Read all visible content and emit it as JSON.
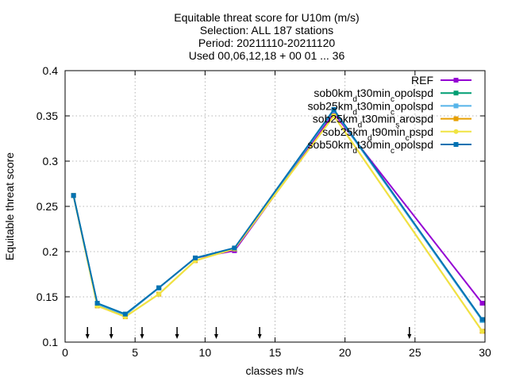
{
  "chart_data": {
    "type": "line",
    "title_lines": [
      "Equitable threat score  for U10m (m/s)",
      "Selection: ALL     187 stations",
      "Period: 20211110-20211120",
      "Used 00,06,12,18 + 00 01 ... 36"
    ],
    "xlabel": "classes m/s",
    "ylabel": "Equitable threat score",
    "xlim": [
      0,
      30
    ],
    "ylim": [
      0.1,
      0.4
    ],
    "xticks": [
      0,
      5,
      10,
      15,
      20,
      25,
      30
    ],
    "yticks": [
      0.1,
      0.15,
      0.2,
      0.25,
      0.3,
      0.35,
      0.4
    ],
    "ytick_labels": [
      "0.1",
      "0.15",
      "0.2",
      "0.25",
      "0.3",
      "0.35",
      "0.4"
    ],
    "grid": true,
    "legend_position": "top-right",
    "class_markers_x": [
      1.6,
      3.3,
      5.5,
      8.0,
      10.8,
      13.9,
      24.6
    ],
    "series": [
      {
        "name": "REF",
        "color": "#9400d3",
        "marker": "square",
        "x": [
          0.6,
          2.3,
          4.3,
          6.7,
          9.3,
          12.1,
          19.2,
          29.8
        ],
        "y": [
          0.262,
          0.142,
          0.13,
          0.16,
          0.193,
          0.201,
          0.353,
          0.143
        ]
      },
      {
        "name": "sob0km_d t30min_c opolspd",
        "color": "#009e73",
        "marker": "square",
        "x": [
          0.6,
          2.3,
          4.3,
          6.7,
          9.3,
          12.1,
          19.2,
          29.8
        ],
        "y": [
          0.262,
          0.142,
          0.13,
          0.16,
          0.193,
          0.203,
          0.356,
          0.124
        ]
      },
      {
        "name": "sob25km_d t30min_c opolspd",
        "color": "#56b4e9",
        "marker": "square",
        "x": [
          0.6,
          2.3,
          4.3,
          6.7,
          9.3,
          12.1,
          19.2,
          29.8
        ],
        "y": [
          0.262,
          0.142,
          0.13,
          0.16,
          0.193,
          0.203,
          0.356,
          0.124
        ]
      },
      {
        "name": "sob25km_d t30min_s arospd",
        "color": "#e69f00",
        "marker": "square",
        "x": [
          0.6,
          2.3,
          4.3,
          6.7,
          9.3,
          12.1,
          19.2,
          29.8
        ],
        "y": [
          0.262,
          0.14,
          0.128,
          0.153,
          0.19,
          0.203,
          0.35,
          0.112
        ]
      },
      {
        "name": "sob25km_d t90min_c pspd",
        "color": "#f0e442",
        "marker": "circle",
        "x": [
          0.6,
          2.3,
          4.3,
          6.7,
          9.3,
          12.1,
          19.2,
          29.8
        ],
        "y": [
          0.262,
          0.14,
          0.128,
          0.153,
          0.19,
          0.203,
          0.35,
          0.112
        ]
      },
      {
        "name": "sob50km_d t30min_c opolspd",
        "color": "#0072b2",
        "marker": "square",
        "x": [
          0.6,
          2.3,
          4.3,
          6.7,
          9.3,
          12.1,
          19.2,
          29.8
        ],
        "y": [
          0.262,
          0.143,
          0.131,
          0.16,
          0.193,
          0.204,
          0.357,
          0.125
        ]
      }
    ]
  }
}
